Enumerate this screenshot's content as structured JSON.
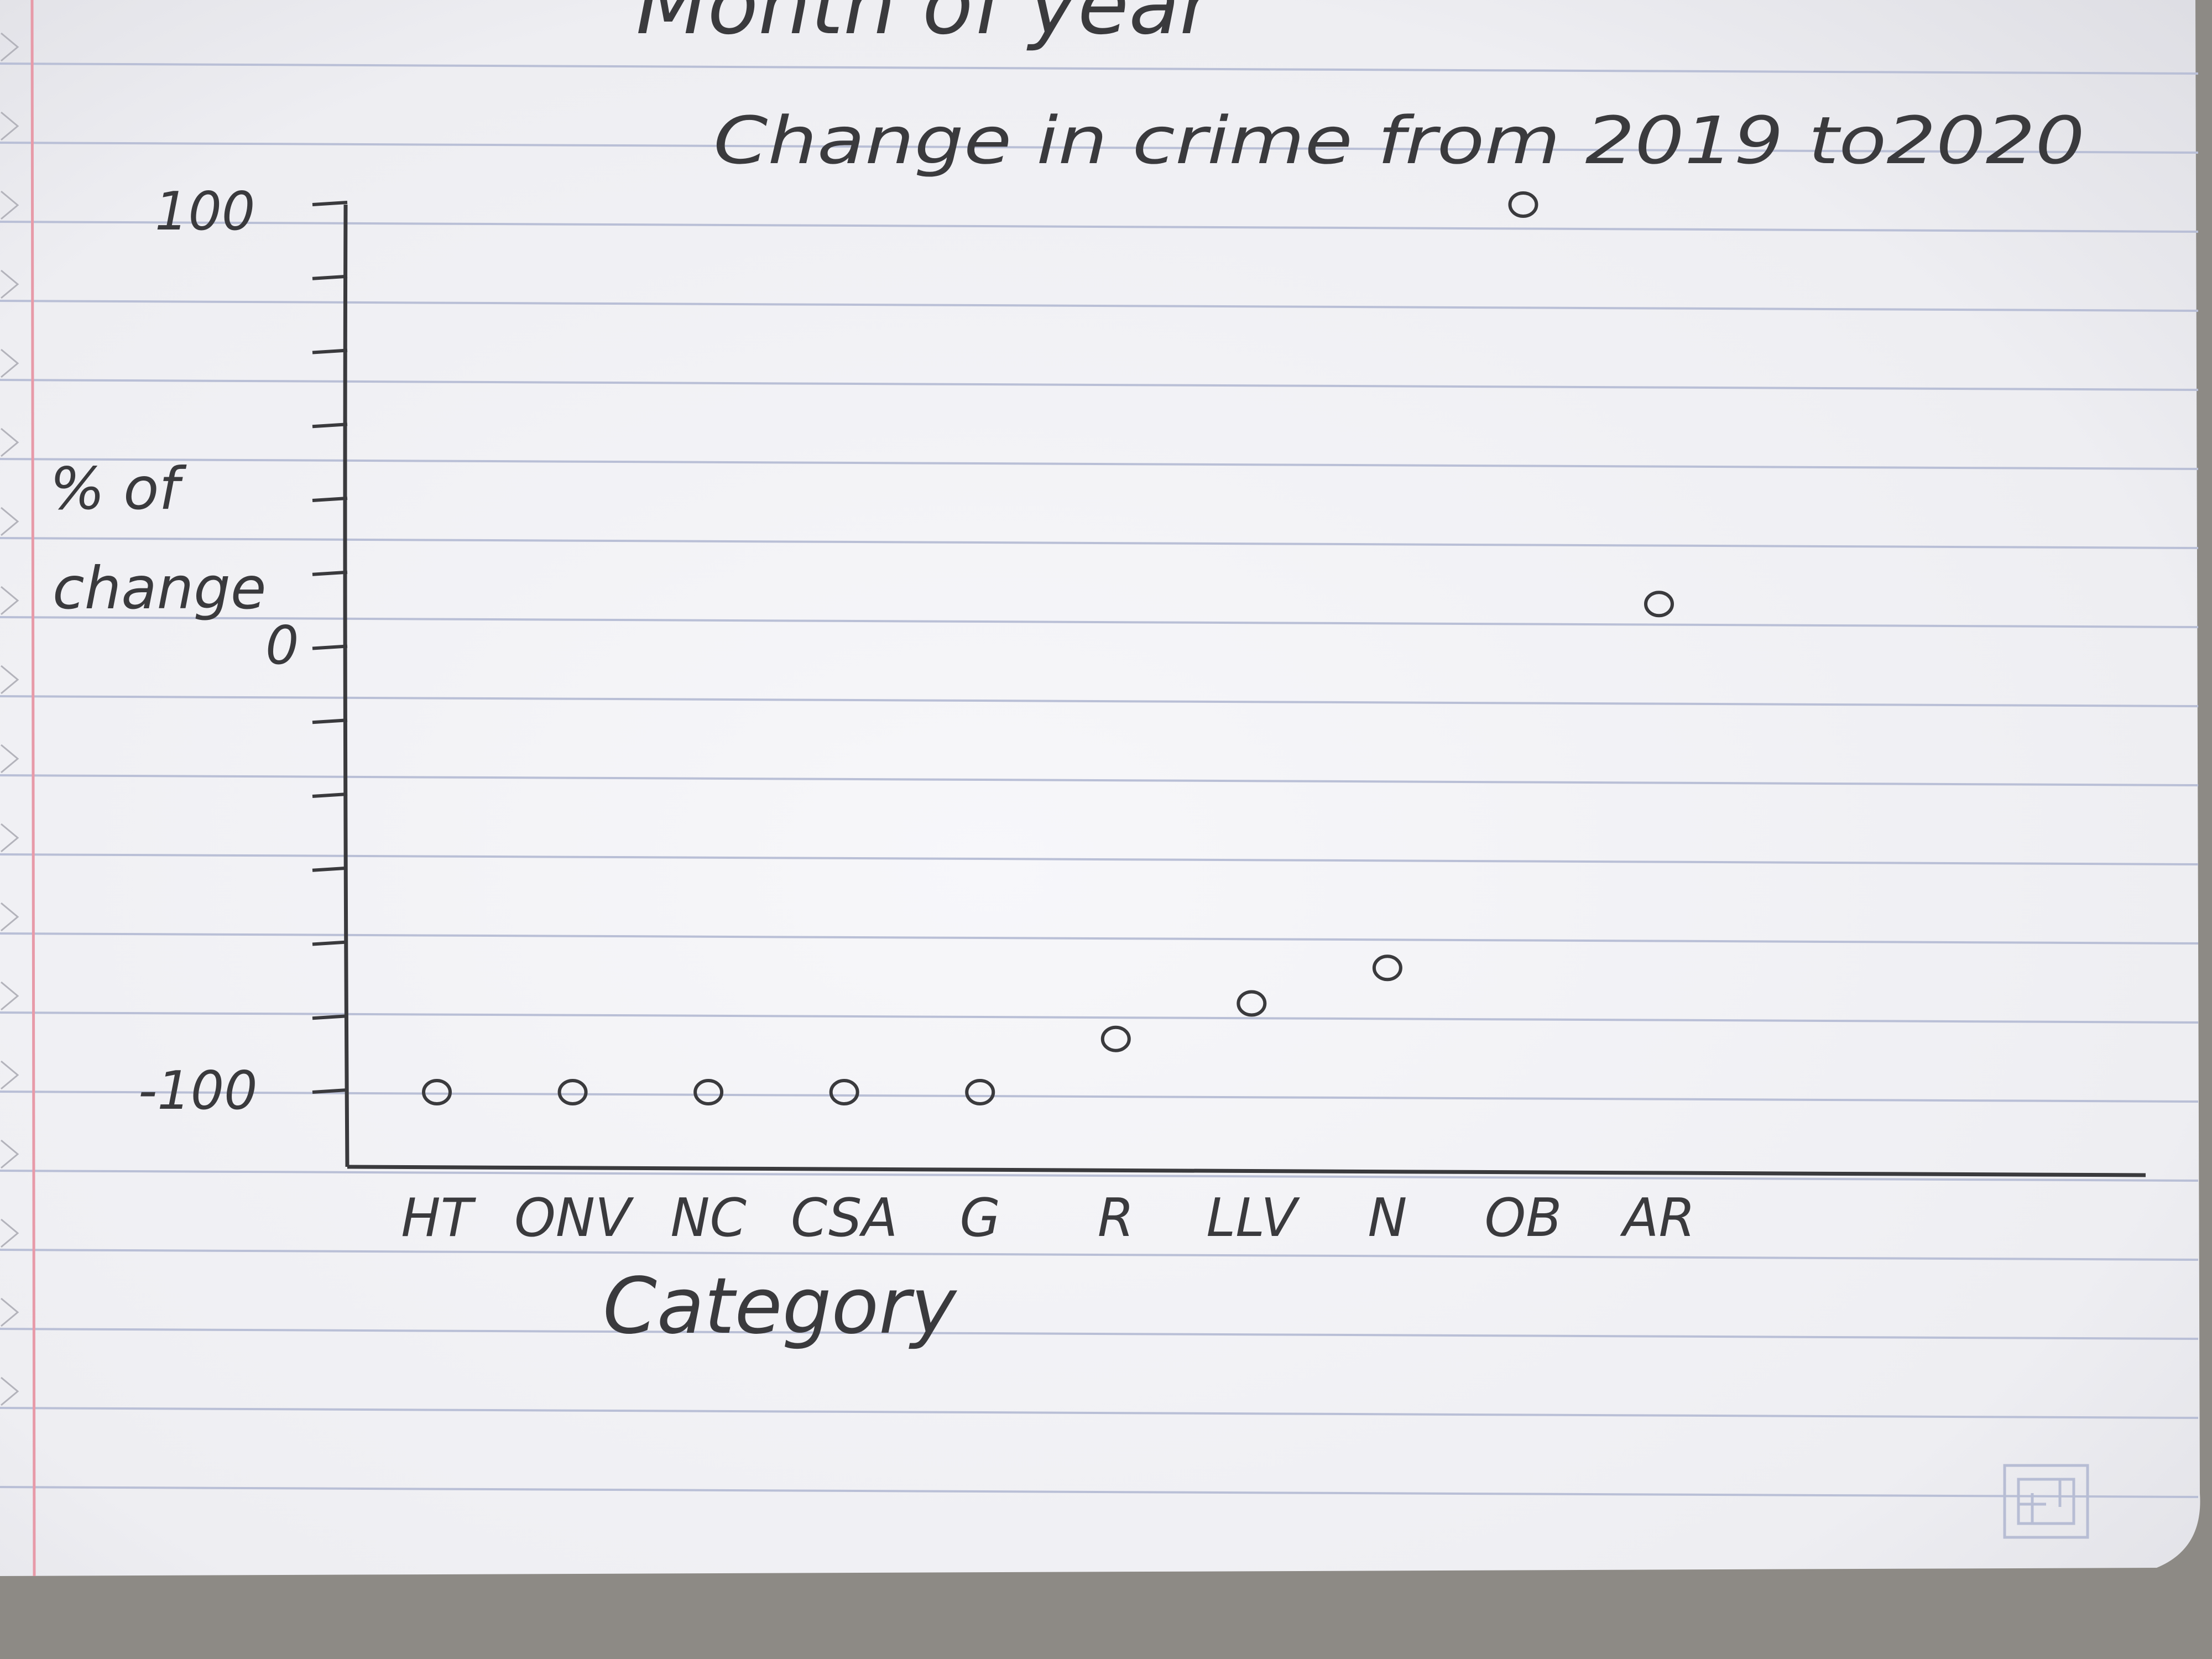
{
  "page": {
    "top_fragment": "Month of year"
  },
  "chart_data": {
    "type": "scatter",
    "title": "Change in crime from 2019 to2020",
    "xlabel": "Category",
    "ylabel_lines": [
      "% of",
      "change"
    ],
    "ylim": [
      -100,
      100
    ],
    "y_tick_labels": [
      "100",
      "0",
      "-100"
    ],
    "y_tick_values": [
      100,
      0,
      -100
    ],
    "minor_tick_count": 12,
    "grid": false,
    "categories": [
      "HT",
      "ONV",
      "NC",
      "CSA",
      "G",
      "R",
      "LLV",
      "N",
      "OB",
      "AR"
    ],
    "points": [
      {
        "x": "HT",
        "y": -100
      },
      {
        "x": "ONV",
        "y": -100
      },
      {
        "x": "NC",
        "y": -100
      },
      {
        "x": "CSA",
        "y": -100
      },
      {
        "x": "G",
        "y": -100
      },
      {
        "x": "R",
        "y": -88
      },
      {
        "x": "LLV",
        "y": -80
      },
      {
        "x": "N",
        "y": -72
      },
      {
        "x": "OB",
        "y": 100
      },
      {
        "x": "AR",
        "y": 10
      }
    ],
    "colors": {
      "pencil": "#3a3a3d",
      "paper": "#f3f3f6",
      "rule_line": "#b9bfd6",
      "margin_line": "#e79aa8"
    }
  }
}
